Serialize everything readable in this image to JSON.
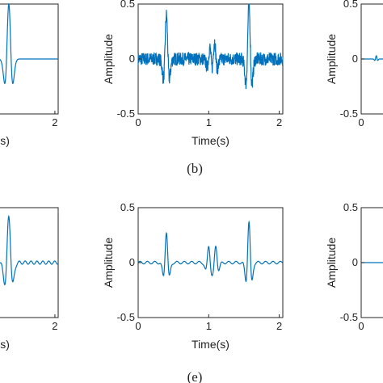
{
  "panel_labels": {
    "b": "(b)",
    "e": "(e)"
  },
  "chart_data": [
    {
      "panel": "top-left",
      "type": "line",
      "xlabel": "Time(s)",
      "ylabel": "",
      "xlim": [
        0,
        2.05
      ],
      "ylim": [
        -0.5,
        0.5
      ],
      "xticks": [
        "2"
      ],
      "yticks": [],
      "grid": false,
      "series": [
        {
          "color": "#0072BD",
          "kind": "wavelet",
          "center": 1.3,
          "amp": 0.5,
          "noise": 0.0
        }
      ]
    },
    {
      "panel": "top-middle",
      "type": "line",
      "xlabel": "Time(s)",
      "ylabel": "Amplitude",
      "xlim": [
        0,
        2.05
      ],
      "ylim": [
        -0.5,
        0.5
      ],
      "xticks": [
        "0",
        "1",
        "2"
      ],
      "yticks": [
        "0.5",
        "0",
        "-0.5"
      ],
      "grid": false,
      "series": [
        {
          "color": "#0072BD",
          "kind": "noisy_pulses",
          "pulses": [
            {
              "t": 0.4,
              "a": 0.4
            },
            {
              "t": 1.02,
              "a": 0.15
            },
            {
              "t": 1.08,
              "a": 0.2
            },
            {
              "t": 1.57,
              "a": 0.5
            }
          ],
          "noise": 0.06
        }
      ]
    },
    {
      "panel": "top-right",
      "type": "line",
      "xlabel": "",
      "ylabel": "Amplitude",
      "xlim": [
        0,
        2.05
      ],
      "ylim": [
        -0.5,
        0.5
      ],
      "xticks": [
        "0"
      ],
      "yticks": [
        "0.5",
        "0",
        "-0.5"
      ],
      "grid": false,
      "series": [
        {
          "color": "#0072BD",
          "kind": "flat_small",
          "center": 0.25,
          "amp": 0.03
        }
      ]
    },
    {
      "panel": "bottom-left",
      "type": "line",
      "xlabel": "Time(s)",
      "ylabel": "",
      "xlim": [
        0,
        2.05
      ],
      "ylim": [
        -0.5,
        0.5
      ],
      "xticks": [
        "2"
      ],
      "yticks": [],
      "grid": false,
      "series": [
        {
          "color": "#0072BD",
          "kind": "wavelet_ripple",
          "center": 1.3,
          "amp": 0.42
        }
      ]
    },
    {
      "panel": "bottom-middle",
      "type": "line",
      "xlabel": "Time(s)",
      "ylabel": "Amplitude",
      "xlim": [
        0,
        2.05
      ],
      "ylim": [
        -0.5,
        0.5
      ],
      "xticks": [
        "0",
        "1",
        "2"
      ],
      "yticks": [
        "0.5",
        "0",
        "-0.5"
      ],
      "grid": false,
      "series": [
        {
          "color": "#0072BD",
          "kind": "clean_pulses",
          "pulses": [
            {
              "t": 0.4,
              "a": 0.28
            },
            {
              "t": 1.0,
              "a": 0.15
            },
            {
              "t": 1.1,
              "a": 0.15
            },
            {
              "t": 1.57,
              "a": 0.37
            }
          ]
        }
      ]
    },
    {
      "panel": "bottom-right",
      "type": "line",
      "xlabel": "",
      "ylabel": "Amplitude",
      "xlim": [
        0,
        2.05
      ],
      "ylim": [
        -0.5,
        0.5
      ],
      "xticks": [
        "0"
      ],
      "yticks": [
        "0.5",
        "0",
        "-0.5"
      ],
      "grid": false,
      "series": [
        {
          "color": "#0072BD",
          "kind": "flat",
          "amp": 0.0
        }
      ]
    }
  ]
}
